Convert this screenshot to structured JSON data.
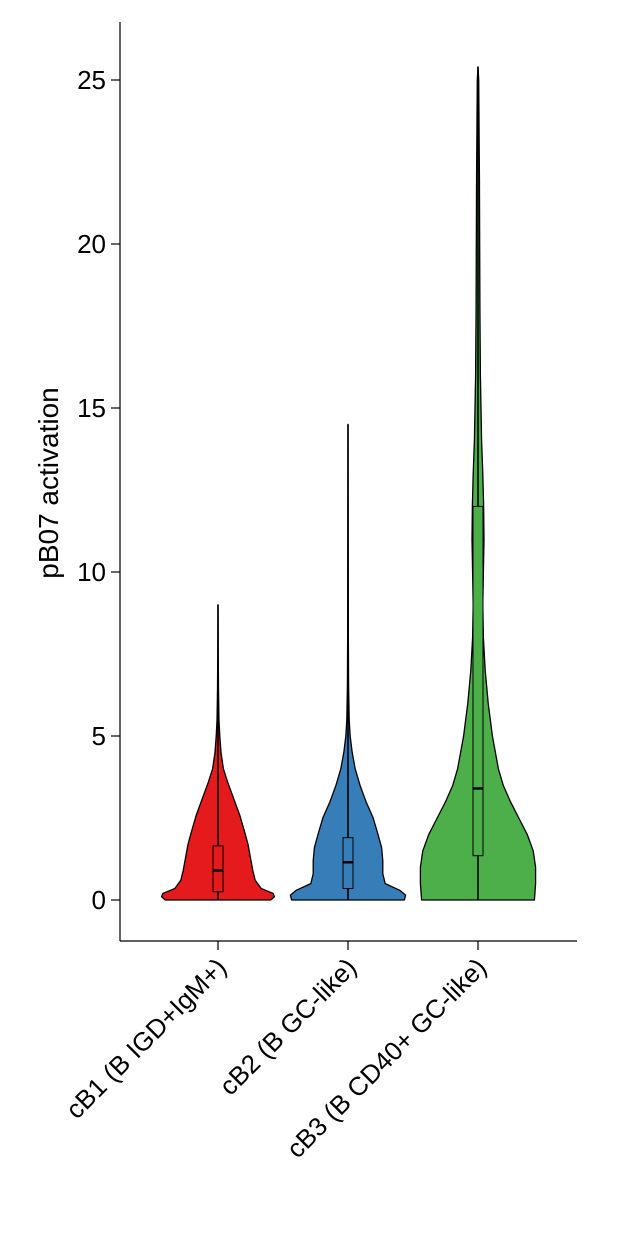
{
  "chart_data": {
    "type": "violin",
    "title": "",
    "xlabel": "",
    "ylabel": "pB07 activation",
    "ylim": [
      -1.2,
      26.8
    ],
    "yticks": [
      0,
      5,
      10,
      15,
      20,
      25
    ],
    "grid": false,
    "legend": "none",
    "categories": [
      "cB1 (B IGD+IgM+)",
      "cB2 (B GC-like)",
      "cB3 (B CD40+ GC-like)"
    ],
    "series": [
      {
        "category": "cB1 (B IGD+IgM+)",
        "color": "#e41a1c",
        "min": 0,
        "q1": 0.25,
        "median": 0.9,
        "q3": 1.65,
        "max": 9.0,
        "density": [
          [
            0,
            0.44
          ],
          [
            0.1,
            0.47
          ],
          [
            0.2,
            0.46
          ],
          [
            0.35,
            0.36
          ],
          [
            0.6,
            0.31
          ],
          [
            0.9,
            0.29
          ],
          [
            1.3,
            0.27
          ],
          [
            1.7,
            0.25
          ],
          [
            2.1,
            0.22
          ],
          [
            2.6,
            0.18
          ],
          [
            3.1,
            0.13
          ],
          [
            3.6,
            0.08
          ],
          [
            4.0,
            0.045
          ],
          [
            4.5,
            0.025
          ],
          [
            5.0,
            0.015
          ],
          [
            5.5,
            0.008
          ],
          [
            6.5,
            0.004
          ],
          [
            7.5,
            0.002
          ],
          [
            9.0,
            0.0
          ]
        ]
      },
      {
        "category": "cB2 (B GC-like)",
        "color": "#377eb8",
        "min": 0,
        "q1": 0.35,
        "median": 1.15,
        "q3": 1.9,
        "max": 14.5,
        "density": [
          [
            0,
            0.47
          ],
          [
            0.15,
            0.48
          ],
          [
            0.3,
            0.43
          ],
          [
            0.5,
            0.31
          ],
          [
            0.8,
            0.29
          ],
          [
            1.2,
            0.29
          ],
          [
            1.6,
            0.28
          ],
          [
            2.0,
            0.25
          ],
          [
            2.5,
            0.21
          ],
          [
            3.0,
            0.15
          ],
          [
            3.5,
            0.1
          ],
          [
            4.0,
            0.06
          ],
          [
            4.5,
            0.035
          ],
          [
            5.0,
            0.018
          ],
          [
            5.5,
            0.01
          ],
          [
            6.5,
            0.005
          ],
          [
            8.0,
            0.003
          ],
          [
            10.0,
            0.002
          ],
          [
            12.0,
            0.001
          ],
          [
            14.5,
            0.0
          ]
        ]
      },
      {
        "category": "cB3 (B CD40+ GC-like)",
        "color": "#4daf4a",
        "min": 0,
        "q1": 1.35,
        "median": 3.4,
        "q3": 12.0,
        "max": 25.4,
        "density": [
          [
            0,
            0.47
          ],
          [
            0.5,
            0.48
          ],
          [
            1.0,
            0.48
          ],
          [
            1.5,
            0.46
          ],
          [
            2.0,
            0.41
          ],
          [
            2.5,
            0.34
          ],
          [
            3.0,
            0.27
          ],
          [
            3.5,
            0.21
          ],
          [
            4.0,
            0.17
          ],
          [
            5.0,
            0.12
          ],
          [
            6.0,
            0.085
          ],
          [
            7.0,
            0.06
          ],
          [
            8.0,
            0.045
          ],
          [
            9.0,
            0.04
          ],
          [
            10.0,
            0.045
          ],
          [
            11.0,
            0.05
          ],
          [
            12.0,
            0.047
          ],
          [
            13.0,
            0.04
          ],
          [
            14.0,
            0.03
          ],
          [
            15.0,
            0.025
          ],
          [
            16.0,
            0.02
          ],
          [
            17.0,
            0.018
          ],
          [
            18.0,
            0.016
          ],
          [
            19.0,
            0.015
          ],
          [
            20.0,
            0.014
          ],
          [
            21.0,
            0.013
          ],
          [
            22.0,
            0.012
          ],
          [
            23.0,
            0.01
          ],
          [
            24.0,
            0.008
          ],
          [
            25.0,
            0.006
          ],
          [
            25.4,
            0.0
          ]
        ]
      }
    ]
  }
}
